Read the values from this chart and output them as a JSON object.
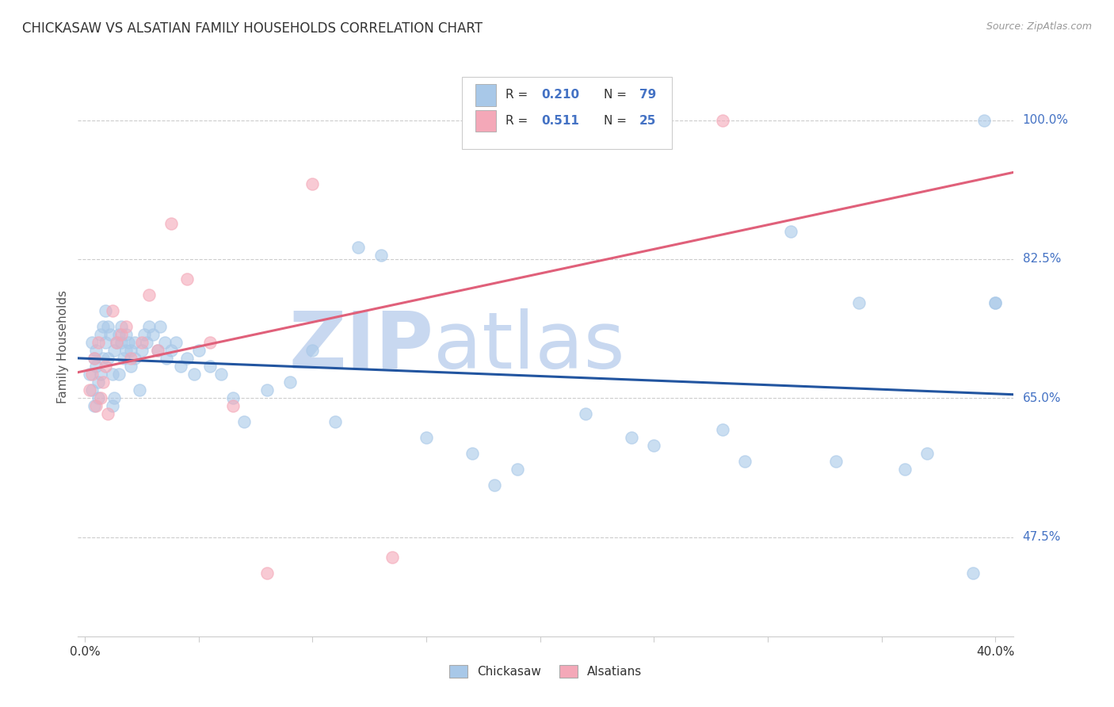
{
  "title": "CHICKASAW VS ALSATIAN FAMILY HOUSEHOLDS CORRELATION CHART",
  "source": "Source: ZipAtlas.com",
  "ylabel": "Family Households",
  "ytick_labels": [
    "100.0%",
    "82.5%",
    "65.0%",
    "47.5%"
  ],
  "ytick_vals": [
    1.0,
    0.825,
    0.65,
    0.475
  ],
  "xtick_labels": [
    "0.0%",
    "",
    "",
    "",
    "",
    "",
    "",
    "",
    "40.0%"
  ],
  "xtick_vals": [
    0.0,
    0.05,
    0.1,
    0.15,
    0.2,
    0.25,
    0.3,
    0.35,
    0.4
  ],
  "chickasaw_color": "#a8c8e8",
  "alsatian_color": "#f4a8b8",
  "chickasaw_line_color": "#2255a0",
  "alsatian_line_color": "#e0607a",
  "watermark_zip_color": "#c8d8f0",
  "watermark_atlas_color": "#c8d8f0",
  "background_color": "#ffffff",
  "grid_color": "#cccccc",
  "title_color": "#333333",
  "source_color": "#999999",
  "ytick_color": "#4472c4",
  "legend_r_color": "#4472c4",
  "legend_text_color": "#333333",
  "legend_n_color": "#4472c4",
  "xmin": 0.0,
  "xmax": 0.4,
  "ymin": 0.35,
  "ymax": 1.08,
  "chickasaw_x": [
    0.002,
    0.003,
    0.003,
    0.004,
    0.004,
    0.005,
    0.005,
    0.006,
    0.006,
    0.007,
    0.007,
    0.008,
    0.008,
    0.009,
    0.009,
    0.01,
    0.01,
    0.011,
    0.012,
    0.012,
    0.013,
    0.013,
    0.014,
    0.015,
    0.015,
    0.016,
    0.016,
    0.017,
    0.018,
    0.018,
    0.019,
    0.02,
    0.02,
    0.022,
    0.022,
    0.024,
    0.025,
    0.026,
    0.027,
    0.028,
    0.03,
    0.032,
    0.033,
    0.035,
    0.036,
    0.038,
    0.04,
    0.042,
    0.045,
    0.048,
    0.05,
    0.055,
    0.06,
    0.065,
    0.07,
    0.08,
    0.09,
    0.1,
    0.11,
    0.12,
    0.13,
    0.15,
    0.17,
    0.19,
    0.22,
    0.25,
    0.28,
    0.31,
    0.34,
    0.37,
    0.4,
    0.18,
    0.24,
    0.29,
    0.33,
    0.36,
    0.39,
    0.4,
    0.395
  ],
  "chickasaw_y": [
    0.68,
    0.66,
    0.72,
    0.7,
    0.64,
    0.69,
    0.71,
    0.67,
    0.65,
    0.73,
    0.68,
    0.74,
    0.7,
    0.72,
    0.76,
    0.74,
    0.7,
    0.73,
    0.68,
    0.64,
    0.71,
    0.65,
    0.72,
    0.73,
    0.68,
    0.74,
    0.72,
    0.7,
    0.71,
    0.73,
    0.72,
    0.69,
    0.71,
    0.7,
    0.72,
    0.66,
    0.71,
    0.73,
    0.72,
    0.74,
    0.73,
    0.71,
    0.74,
    0.72,
    0.7,
    0.71,
    0.72,
    0.69,
    0.7,
    0.68,
    0.71,
    0.69,
    0.68,
    0.65,
    0.62,
    0.66,
    0.67,
    0.71,
    0.62,
    0.84,
    0.83,
    0.6,
    0.58,
    0.56,
    0.63,
    0.59,
    0.61,
    0.86,
    0.77,
    0.58,
    0.77,
    0.54,
    0.6,
    0.57,
    0.57,
    0.56,
    0.43,
    0.77,
    1.0
  ],
  "alsatian_x": [
    0.002,
    0.003,
    0.004,
    0.005,
    0.006,
    0.007,
    0.008,
    0.009,
    0.01,
    0.012,
    0.014,
    0.016,
    0.018,
    0.02,
    0.025,
    0.028,
    0.032,
    0.038,
    0.045,
    0.055,
    0.065,
    0.08,
    0.1,
    0.135,
    0.28
  ],
  "alsatian_y": [
    0.66,
    0.68,
    0.7,
    0.64,
    0.72,
    0.65,
    0.67,
    0.69,
    0.63,
    0.76,
    0.72,
    0.73,
    0.74,
    0.7,
    0.72,
    0.78,
    0.71,
    0.87,
    0.8,
    0.72,
    0.64,
    0.43,
    0.92,
    0.45,
    1.0
  ],
  "legend_chickasaw_r": "R = 0.210",
  "legend_chickasaw_n": "N = 79",
  "legend_alsatian_r": "R = 0.511",
  "legend_alsatian_n": "N = 25",
  "legend_label_chickasaw": "Chickasaw",
  "legend_label_alsatian": "Alsatians"
}
